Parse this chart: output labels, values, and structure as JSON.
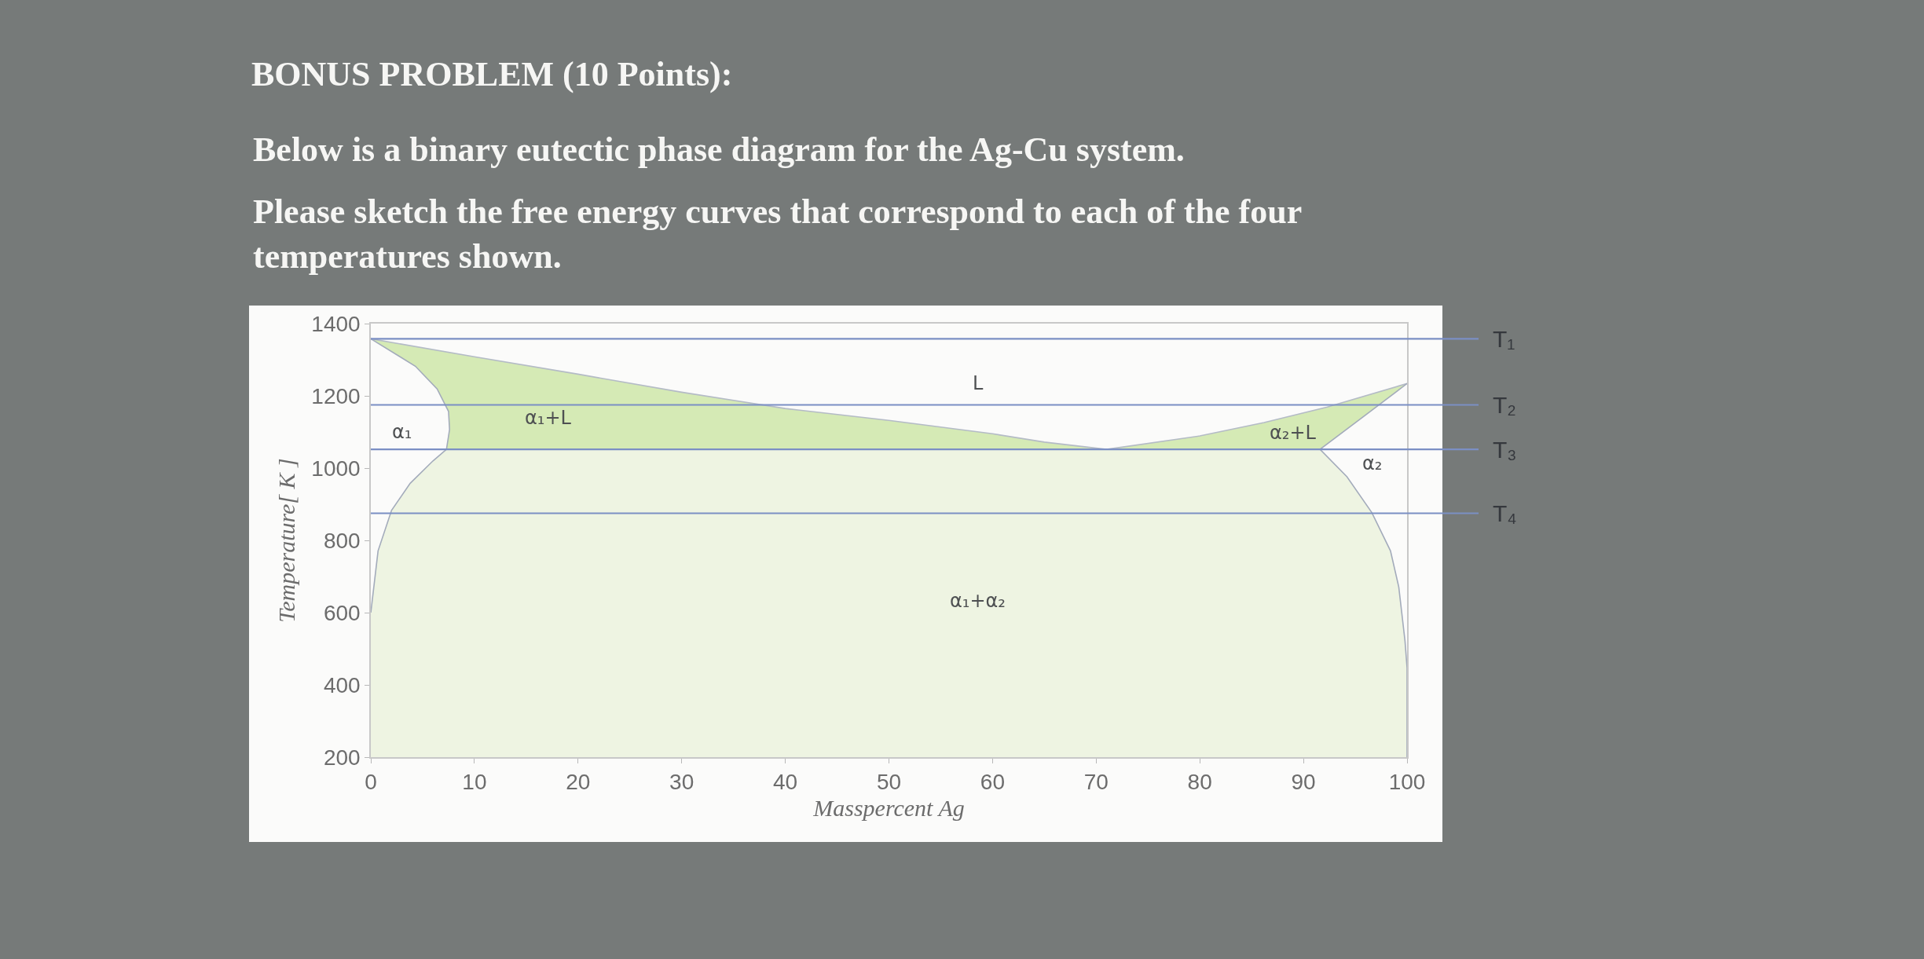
{
  "chart_data": {
    "type": "line",
    "title": "BONUS PROBLEM (10 Points):",
    "subtitle": "Below is a binary eutectic phase diagram for the Ag-Cu system.",
    "annotations": [
      "Please sketch the free energy curves that correspond to each of the four temperatures shown.",
      "L",
      "α₁+L",
      "α₁",
      "α₂+L",
      "α₂",
      "α₁+α₂"
    ],
    "xlabel": "Masspercent Ag",
    "ylabel": "Temperature[ K ]",
    "xlim": [
      0,
      100
    ],
    "ylim": [
      200,
      1400
    ],
    "xticks": [
      0,
      10,
      20,
      30,
      40,
      50,
      60,
      70,
      80,
      90,
      100
    ],
    "yticks": [
      200,
      400,
      600,
      800,
      1000,
      1200,
      1400
    ],
    "grid": false,
    "marker": "none",
    "line_style": "solid",
    "ref_lines": [
      {
        "axis": "y",
        "value": 1358,
        "label": "T₁",
        "color": "#7b8fc4"
      },
      {
        "axis": "y",
        "value": 1175,
        "label": "T₂",
        "color": "#7b8fc4"
      },
      {
        "axis": "y",
        "value": 1052,
        "label": "T₃",
        "color": "#7b8fc4"
      },
      {
        "axis": "y",
        "value": 875,
        "label": "T₄",
        "color": "#7b8fc4"
      }
    ],
    "series": [
      {
        "type": "area",
        "color": "#eef4e2",
        "x": [
          7.3,
          91.6,
          94.2,
          96.6,
          98.4,
          99.2,
          99.8,
          100,
          100,
          0,
          0,
          0.7,
          2.0,
          3.8,
          6.0,
          7.3
        ],
        "values": [
          1052,
          1052,
          976,
          877,
          771,
          671,
          522,
          447,
          200,
          200,
          600,
          771,
          883,
          958,
          1020,
          1052
        ]
      },
      {
        "type": "area",
        "color": "#d5eab5",
        "x": [
          0,
          10,
          20,
          30,
          40,
          50,
          60,
          65,
          71,
          7.3,
          7.6,
          7.5,
          6.4,
          4.3,
          0
        ],
        "values": [
          1358,
          1308,
          1260,
          1210,
          1165,
          1132,
          1095,
          1072,
          1052,
          1052,
          1107,
          1157,
          1219,
          1282,
          1358
        ]
      },
      {
        "type": "area",
        "color": "#d5eab5",
        "x": [
          71,
          80,
          86.2,
          92.3,
          100,
          96.6,
          91.6,
          71
        ],
        "values": [
          1052,
          1089,
          1126,
          1169,
          1234,
          1160,
          1052,
          1052
        ]
      },
      {
        "color": "#a3abbb",
        "x": [
          0,
          4.3,
          6.4,
          7.5,
          7.6,
          7.3,
          6.0,
          3.8,
          2.0,
          0.7,
          0
        ],
        "values": [
          1358,
          1282,
          1219,
          1157,
          1107,
          1052,
          1020,
          958,
          883,
          771,
          600
        ]
      },
      {
        "color": "#b4bbc6",
        "x": [
          0,
          10,
          20,
          30,
          40,
          50,
          60,
          65,
          71,
          80,
          86.2,
          92.3,
          100
        ],
        "values": [
          1358,
          1308,
          1260,
          1210,
          1165,
          1132,
          1095,
          1072,
          1052,
          1089,
          1126,
          1169,
          1234
        ]
      },
      {
        "color": "#a3abbb",
        "x": [
          100,
          96.6,
          91.6,
          94.2,
          96.6,
          98.4,
          99.2,
          99.8,
          100,
          100
        ],
        "values": [
          1234,
          1160,
          1052,
          976,
          877,
          771,
          671,
          522,
          447,
          200
        ]
      }
    ]
  }
}
